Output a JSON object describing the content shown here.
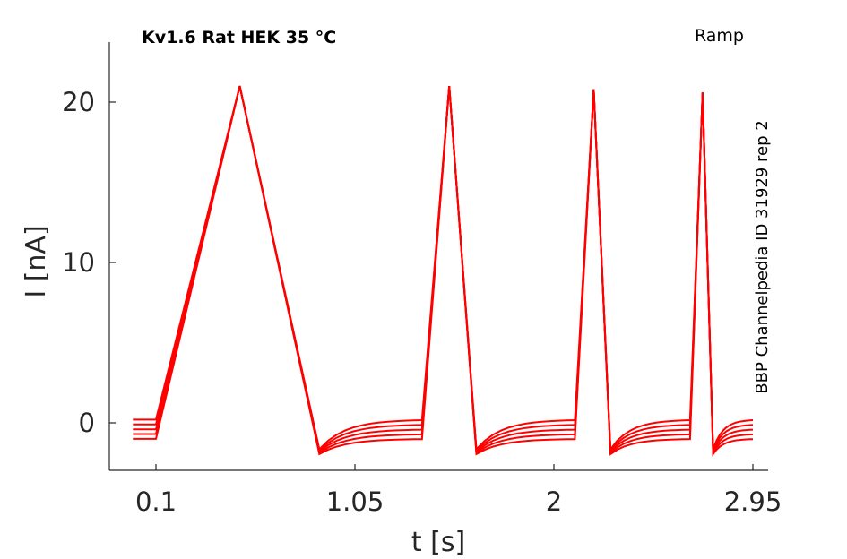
{
  "chart_data": {
    "type": "line",
    "title": "Kv1.6  Rat  HEK  35 °C",
    "protocol": "Ramp",
    "side_label": "BBP Channelpedia ID 31929 rep 2",
    "xlabel": "t [s]",
    "ylabel": "I [nA]",
    "xlim": [
      -0.01,
      3.08
    ],
    "ylim": [
      -3.0,
      23.5
    ],
    "xticks": [
      {
        "value": 0.1,
        "label": "0.1"
      },
      {
        "value": 1.05,
        "label": "1.05"
      },
      {
        "value": 2.0,
        "label": "2"
      },
      {
        "value": 2.95,
        "label": "2.95"
      }
    ],
    "yticks": [
      {
        "value": 0,
        "label": "0"
      },
      {
        "value": 10,
        "label": "10"
      },
      {
        "value": 20,
        "label": "20"
      }
    ],
    "grid": false,
    "line_color": "#ff0000",
    "series": [
      {
        "offset": 0.2
      },
      {
        "offset": -0.1
      },
      {
        "offset": -0.4
      },
      {
        "offset": -0.7
      },
      {
        "offset": -1.0
      }
    ],
    "ramps": [
      {
        "start": 0.1,
        "peak_t": 0.5,
        "end": 0.88,
        "peak": 21.0,
        "next_flat_end": 1.37
      },
      {
        "start": 1.37,
        "peak_t": 1.5,
        "end": 1.63,
        "peak": 21.0,
        "next_flat_end": 2.1
      },
      {
        "start": 2.1,
        "peak_t": 2.19,
        "end": 2.27,
        "peak": 20.8,
        "next_flat_end": 2.65
      },
      {
        "start": 2.65,
        "peak_t": 2.71,
        "end": 2.76,
        "peak": 20.6,
        "next_flat_end": 2.95
      }
    ],
    "trough": -1.7,
    "initial_flat": [
      -0.01,
      0.1
    ]
  }
}
